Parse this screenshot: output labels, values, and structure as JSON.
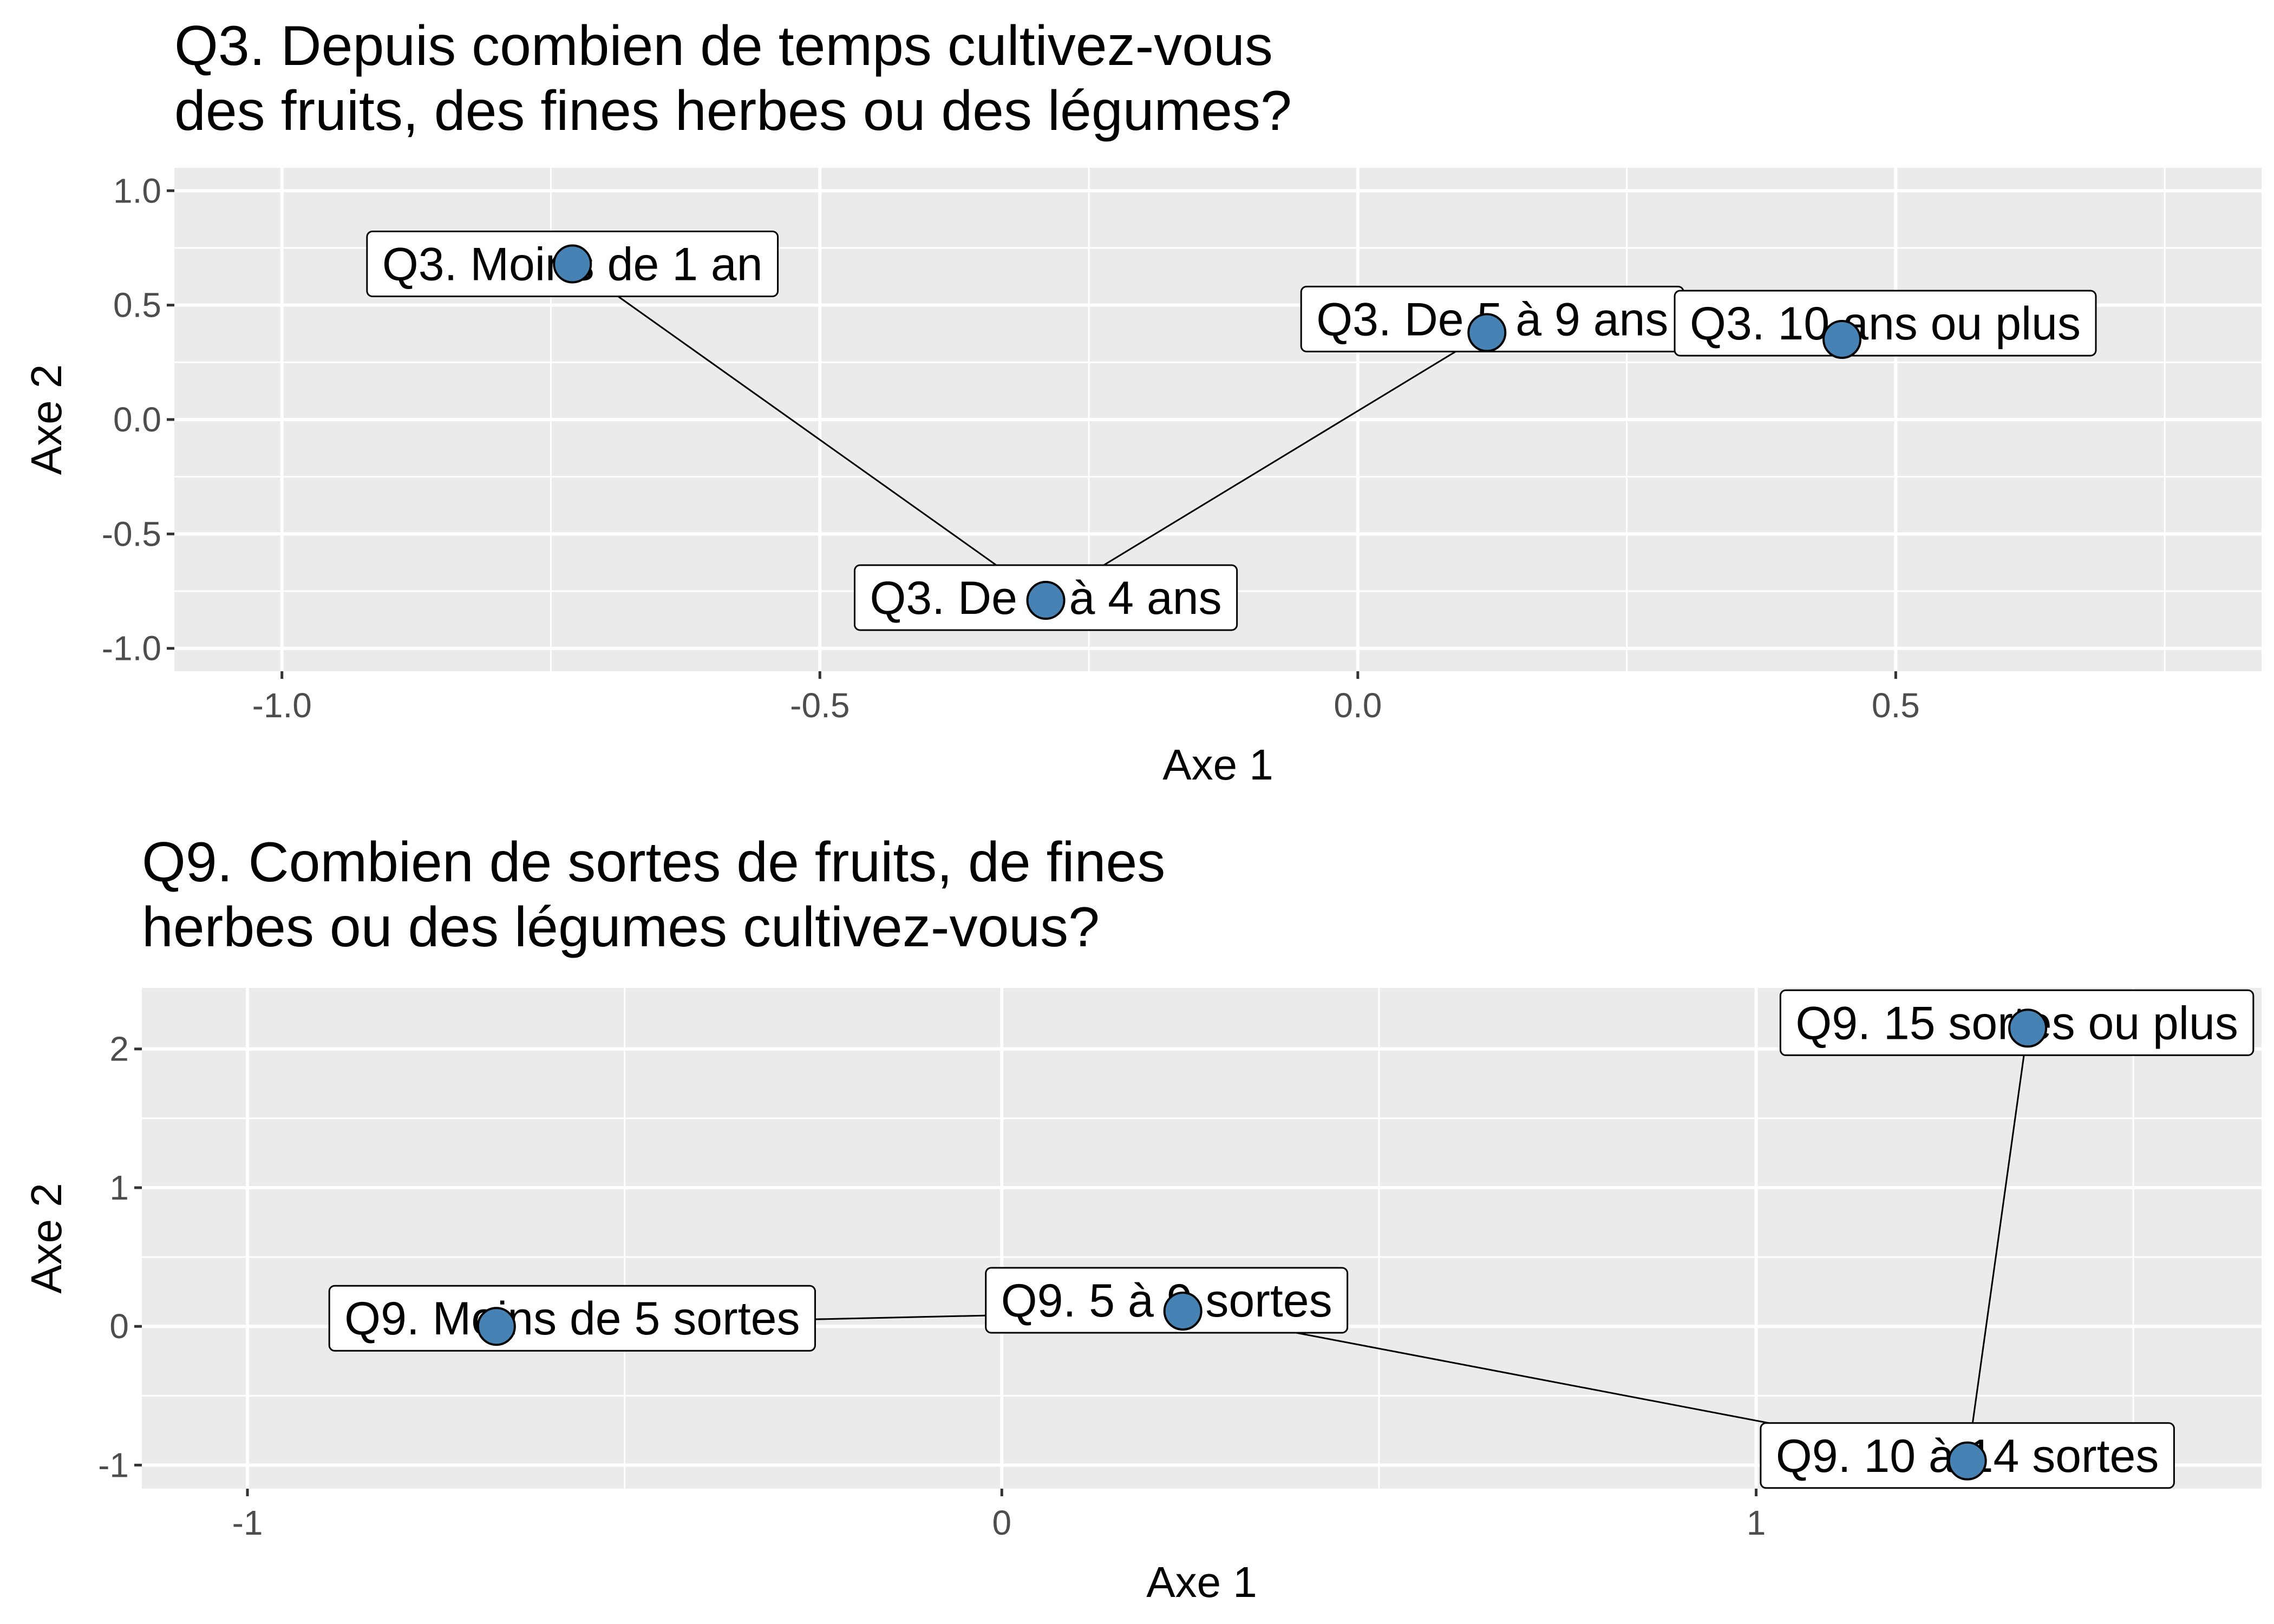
{
  "colors": {
    "panel_background": "#ebebeb",
    "grid": "#ffffff",
    "point_fill": "#4682b4",
    "point_stroke": "#000000",
    "line": "#000000"
  },
  "chart_data": [
    {
      "type": "scatter",
      "connected": true,
      "title_lines": [
        "Q3. Depuis combien de temps cultivez-vous",
        "des fruits, des fines herbes ou des légumes?"
      ],
      "xlabel": "Axe 1",
      "ylabel": "Axe 2",
      "xlim": [
        -1.1,
        0.84
      ],
      "ylim": [
        -1.1,
        1.1
      ],
      "x_ticks": [
        -1.0,
        -0.5,
        0.0,
        0.5
      ],
      "x_tick_labels": [
        "-1.0",
        "-0.5",
        "0.0",
        "0.5"
      ],
      "y_ticks": [
        1.0,
        0.5,
        0.0,
        -0.5,
        -1.0
      ],
      "y_tick_labels": [
        "1.0",
        "0.5",
        "0.0",
        "-0.5",
        "-1.0"
      ],
      "grid": true,
      "legend": "none",
      "points": [
        {
          "label": "Q3. Moins de 1 an",
          "x": -0.73,
          "y": 0.68
        },
        {
          "label": "Q3. De 1 à 4 ans",
          "x": -0.29,
          "y": -0.79
        },
        {
          "label": "Q3. De 5 à 9 ans",
          "x": 0.12,
          "y": 0.38
        },
        {
          "label": "Q3. 10 ans ou plus",
          "x": 0.45,
          "y": 0.35
        }
      ]
    },
    {
      "type": "scatter",
      "connected": true,
      "title_lines": [
        "Q9. Combien de sortes de fruits, de fines",
        "herbes ou des légumes cultivez-vous?"
      ],
      "xlabel": "Axe 1",
      "ylabel": "Axe 2",
      "xlim": [
        -1.14,
        1.67
      ],
      "ylim": [
        -1.17,
        2.44
      ],
      "x_ticks": [
        -1,
        0,
        1
      ],
      "x_tick_labels": [
        "-1",
        "0",
        "1"
      ],
      "y_ticks": [
        2,
        1,
        0,
        -1
      ],
      "y_tick_labels": [
        "2",
        "1",
        "0",
        "-1"
      ],
      "grid": true,
      "legend": "none",
      "points": [
        {
          "label": "Q9. Moins de 5 sortes",
          "x": -0.67,
          "y": 0.0
        },
        {
          "label": "Q9. 5 à 9 sortes",
          "x": 0.24,
          "y": 0.11
        },
        {
          "label": "Q9. 10 à 14 sortes",
          "x": 1.28,
          "y": -0.97
        },
        {
          "label": "Q9. 15 sortes ou plus",
          "x": 1.36,
          "y": 2.15
        }
      ]
    }
  ]
}
